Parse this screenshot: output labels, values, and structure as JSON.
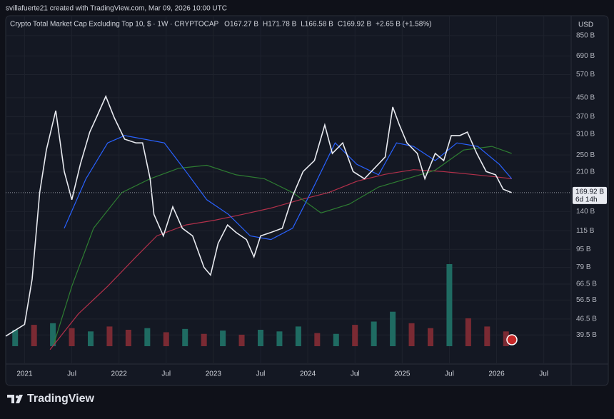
{
  "attribution": "svillafuerte21 created with TradingView.com, Mar 09, 2026 10:00 UTC",
  "logo": "TradingView",
  "chart_data": {
    "type": "line",
    "title": "Crypto Total Market Cap Excluding Top 10, $ · 1W · CRYPTOCAP",
    "ohlc": [
      "O167.27 B",
      "H171.78 B",
      "L166.58 B",
      "C169.92 B",
      "+2.65 B (+1.58%)"
    ],
    "currency": "USD",
    "log_scale": true,
    "grid": true,
    "xlim": [
      2020.8,
      2026.79
    ],
    "xticks": [
      {
        "value": 2021,
        "label": "2021"
      },
      {
        "value": 2021.5,
        "label": "Jul"
      },
      {
        "value": 2022,
        "label": "2022"
      },
      {
        "value": 2022.5,
        "label": "Jul"
      },
      {
        "value": 2023,
        "label": "2023"
      },
      {
        "value": 2023.5,
        "label": "Jul"
      },
      {
        "value": 2024,
        "label": "2024"
      },
      {
        "value": 2024.5,
        "label": "Jul"
      },
      {
        "value": 2025,
        "label": "2025"
      },
      {
        "value": 2025.5,
        "label": "Jul"
      },
      {
        "value": 2026,
        "label": "2026"
      },
      {
        "value": 2026.5,
        "label": "Jul"
      }
    ],
    "ylim": [
      29.3,
      998
    ],
    "yticks": [
      {
        "value": 850,
        "label": "850 B"
      },
      {
        "value": 690,
        "label": "690 B"
      },
      {
        "value": 570,
        "label": "570 B"
      },
      {
        "value": 450,
        "label": "450 B"
      },
      {
        "value": 370,
        "label": "370 B"
      },
      {
        "value": 310,
        "label": "310 B"
      },
      {
        "value": 250,
        "label": "250 B"
      },
      {
        "value": 210,
        "label": "210 B"
      },
      {
        "value": 140,
        "label": "140 B"
      },
      {
        "value": 115,
        "label": "115 B"
      },
      {
        "value": 95,
        "label": "95 B"
      },
      {
        "value": 79,
        "label": "79 B"
      },
      {
        "value": 66.5,
        "label": "66.5 B"
      },
      {
        "value": 56.5,
        "label": "56.5 B"
      },
      {
        "value": 46.5,
        "label": "46.5 B"
      },
      {
        "value": 39.5,
        "label": "39.5 B"
      }
    ],
    "last_label": "169.92 B",
    "countdown": "6d 14h",
    "series": [
      {
        "color": "#e8eaf0",
        "x": [
          2020.8,
          2021.0,
          2021.08,
          2021.16,
          2021.23,
          2021.33,
          2021.42,
          2021.5,
          2021.59,
          2021.69,
          2021.76,
          2021.86,
          2021.95,
          2022.06,
          2022.18,
          2022.25,
          2022.33,
          2022.37,
          2022.47,
          2022.57,
          2022.67,
          2022.78,
          2022.9,
          2022.97,
          2023.05,
          2023.15,
          2023.24,
          2023.35,
          2023.43,
          2023.5,
          2023.61,
          2023.73,
          2023.84,
          2023.95,
          2024.07,
          2024.18,
          2024.26,
          2024.37,
          2024.48,
          2024.6,
          2024.71,
          2024.82,
          2024.9,
          2024.97,
          2025.05,
          2025.16,
          2025.24,
          2025.35,
          2025.44,
          2025.52,
          2025.61,
          2025.69,
          2025.79,
          2025.89,
          2025.99,
          2026.07,
          2026.16
        ],
        "values": [
          39,
          44,
          70,
          170,
          263,
          394,
          211,
          158,
          227,
          316,
          366,
          456,
          366,
          294,
          283,
          283,
          196,
          136,
          109,
          147,
          118,
          109,
          79,
          73,
          101,
          122,
          113,
          105,
          88,
          109,
          113,
          118,
          164,
          211,
          236,
          340,
          254,
          283,
          211,
          196,
          219,
          245,
          409,
          340,
          283,
          254,
          196,
          254,
          236,
          305,
          305,
          316,
          254,
          211,
          204,
          176,
          169.92
        ]
      },
      {
        "color": "#2962ff",
        "x": [
          2021.42,
          2021.65,
          2021.88,
          2022.06,
          2022.48,
          2022.71,
          2022.93,
          2023.16,
          2023.39,
          2023.61,
          2023.84,
          2024.07,
          2024.29,
          2024.52,
          2024.75,
          2024.94,
          2025.12,
          2025.35,
          2025.58,
          2025.8,
          2026.03,
          2026.16
        ],
        "values": [
          118,
          196,
          283,
          305,
          283,
          211,
          158,
          136,
          109,
          105,
          118,
          183,
          283,
          227,
          204,
          283,
          273,
          236,
          283,
          273,
          227,
          196
        ]
      },
      {
        "color": "#2e7d32",
        "x": [
          2021.31,
          2021.5,
          2021.73,
          2022.03,
          2022.33,
          2022.63,
          2022.93,
          2023.24,
          2023.54,
          2023.84,
          2024.14,
          2024.44,
          2024.75,
          2025.05,
          2025.35,
          2025.65,
          2025.95,
          2026.16
        ],
        "values": [
          36,
          65,
          118,
          170,
          196,
          218,
          225,
          204,
          196,
          170,
          138,
          151,
          180,
          196,
          214,
          263,
          273,
          254
        ]
      },
      {
        "color": "#b2304a",
        "x": [
          2021.27,
          2021.57,
          2021.88,
          2022.18,
          2022.4,
          2022.71,
          2023.01,
          2023.31,
          2023.61,
          2023.92,
          2024.22,
          2024.52,
          2024.82,
          2025.12,
          2025.43,
          2025.73,
          2026.03,
          2026.16
        ],
        "values": [
          34,
          49,
          65,
          88,
          109,
          122,
          128,
          136,
          145,
          158,
          170,
          191,
          205,
          215,
          211,
          205,
          199,
          196
        ]
      }
    ],
    "volume": {
      "ylim": [
        0,
        100
      ],
      "x": [
        2020.9,
        2021.1,
        2021.3,
        2021.5,
        2021.7,
        2021.9,
        2022.1,
        2022.3,
        2022.5,
        2022.7,
        2022.9,
        2023.1,
        2023.3,
        2023.5,
        2023.7,
        2023.9,
        2024.1,
        2024.3,
        2024.5,
        2024.7,
        2024.9,
        2025.1,
        2025.3,
        2025.5,
        2025.7,
        2025.9,
        2026.1
      ],
      "values": [
        20,
        26,
        28,
        22,
        18,
        24,
        20,
        22,
        17,
        21,
        15,
        19,
        14,
        20,
        18,
        24,
        16,
        15,
        26,
        30,
        42,
        28,
        22,
        100,
        34,
        24,
        18
      ],
      "colors": [
        "#1f6b62",
        "#7a2a33",
        "#1f6b62",
        "#7a2a33",
        "#1f6b62",
        "#7a2a33",
        "#7a2a33",
        "#1f6b62",
        "#7a2a33",
        "#1f6b62",
        "#7a2a33",
        "#1f6b62",
        "#7a2a33",
        "#1f6b62",
        "#1f6b62",
        "#1f6b62",
        "#7a2a33",
        "#1f6b62",
        "#7a2a33",
        "#1f6b62",
        "#1f6b62",
        "#7a2a33",
        "#7a2a33",
        "#1f6b62",
        "#7a2a33",
        "#7a2a33",
        "#7a2a33"
      ]
    }
  }
}
